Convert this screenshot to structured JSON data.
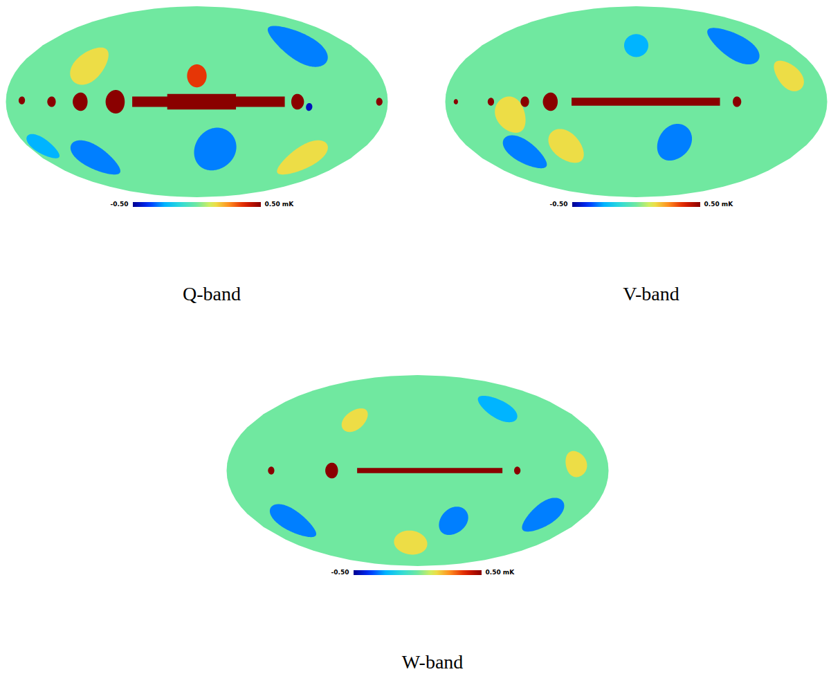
{
  "chart_data": [
    {
      "type": "map",
      "title": "Q-band",
      "background": 0,
      "colorbar": {
        "range": [
          -0.5,
          0.5
        ],
        "ticks": [
          {
            "value": -0.5,
            "label": "-0.50"
          },
          {
            "value": 0.5,
            "label": "0.50 mK"
          }
        ]
      },
      "regions": [
        {
          "shape": "spot",
          "lon": -120,
          "lat": 45,
          "radius": 18,
          "value": -0.3
        },
        {
          "shape": "spot",
          "lon": -20,
          "lat": -38,
          "radius": 18,
          "value": -0.3
        },
        {
          "shape": "spot",
          "lon": 120,
          "lat": -45,
          "radius": 15,
          "value": -0.3
        },
        {
          "shape": "spot",
          "lon": 165,
          "lat": -35,
          "radius": 10,
          "value": -0.25
        },
        {
          "shape": "spot",
          "lon": 110,
          "lat": 28,
          "radius": 15,
          "value": 0.15
        },
        {
          "shape": "spot",
          "lon": -125,
          "lat": -45,
          "radius": 15,
          "value": 0.15
        },
        {
          "shape": "spot",
          "lon": 0,
          "lat": 20,
          "radius": 9,
          "value": 0.35
        },
        {
          "shape": "band",
          "lon": [
            -83,
            61
          ],
          "lat": [
            -4,
            4
          ],
          "value": 0.5
        },
        {
          "shape": "band",
          "lon": [
            -37,
            28
          ],
          "lat": [
            -6,
            6
          ],
          "value": 0.5
        },
        {
          "shape": "spot",
          "lon": 77,
          "lat": 0,
          "radius": 9,
          "value": 0.5
        },
        {
          "shape": "spot",
          "lon": 110,
          "lat": 0,
          "radius": 7,
          "value": 0.5
        },
        {
          "shape": "spot",
          "lon": 137,
          "lat": 0,
          "radius": 4,
          "value": 0.5
        },
        {
          "shape": "spot",
          "lon": 165,
          "lat": 1,
          "radius": 3,
          "value": 0.5
        },
        {
          "shape": "spot",
          "lon": -172,
          "lat": 0,
          "radius": 3,
          "value": 0.5
        },
        {
          "shape": "spot",
          "lon": -95,
          "lat": 0,
          "radius": 6,
          "value": 0.5
        },
        {
          "shape": "spot",
          "lon": -106,
          "lat": -4,
          "radius": 3,
          "value": -0.45
        }
      ]
    },
    {
      "type": "map",
      "title": "V-band",
      "background": 0,
      "colorbar": {
        "range": [
          -0.5,
          0.5
        ],
        "ticks": [
          {
            "value": -0.5,
            "label": "-0.50"
          },
          {
            "value": 0.5,
            "label": "0.50 mK"
          }
        ]
      },
      "regions": [
        {
          "shape": "spot",
          "lon": -115,
          "lat": 45,
          "radius": 16,
          "value": -0.3
        },
        {
          "shape": "spot",
          "lon": -40,
          "lat": -32,
          "radius": 15,
          "value": -0.3
        },
        {
          "shape": "spot",
          "lon": 125,
          "lat": -40,
          "radius": 14,
          "value": -0.3
        },
        {
          "shape": "spot",
          "lon": 0,
          "lat": 45,
          "radius": 10,
          "value": -0.25
        },
        {
          "shape": "spot",
          "lon": 120,
          "lat": -10,
          "radius": 14,
          "value": 0.15
        },
        {
          "shape": "spot",
          "lon": 75,
          "lat": -35,
          "radius": 14,
          "value": 0.15
        },
        {
          "shape": "spot",
          "lon": -150,
          "lat": 20,
          "radius": 12,
          "value": 0.15
        },
        {
          "shape": "band",
          "lon": [
            -79,
            61
          ],
          "lat": [
            -3,
            3
          ],
          "value": 0.5
        },
        {
          "shape": "spot",
          "lon": 81,
          "lat": 0,
          "radius": 7,
          "value": 0.5
        },
        {
          "shape": "spot",
          "lon": 105,
          "lat": 0,
          "radius": 4,
          "value": 0.5
        },
        {
          "shape": "spot",
          "lon": 137,
          "lat": 0,
          "radius": 3,
          "value": 0.5
        },
        {
          "shape": "spot",
          "lon": -95,
          "lat": 0,
          "radius": 4,
          "value": 0.5
        },
        {
          "shape": "spot",
          "lon": 170,
          "lat": 0,
          "radius": 2,
          "value": 0.5
        }
      ]
    },
    {
      "type": "map",
      "title": "W-band",
      "background": 0,
      "colorbar": {
        "range": [
          -0.5,
          0.5
        ],
        "ticks": [
          {
            "value": -0.5,
            "label": "-0.50"
          },
          {
            "value": 0.5,
            "label": "0.50 mK"
          }
        ]
      },
      "regions": [
        {
          "shape": "spot",
          "lon": 140,
          "lat": -40,
          "radius": 14,
          "value": -0.3
        },
        {
          "shape": "spot",
          "lon": -135,
          "lat": -35,
          "radius": 14,
          "value": -0.3
        },
        {
          "shape": "spot",
          "lon": -40,
          "lat": -40,
          "radius": 12,
          "value": -0.3
        },
        {
          "shape": "spot",
          "lon": -100,
          "lat": 50,
          "radius": 12,
          "value": -0.25
        },
        {
          "shape": "spot",
          "lon": -150,
          "lat": 5,
          "radius": 10,
          "value": 0.15
        },
        {
          "shape": "spot",
          "lon": 10,
          "lat": -60,
          "radius": 12,
          "value": 0.15
        },
        {
          "shape": "spot",
          "lon": 70,
          "lat": 40,
          "radius": 10,
          "value": 0.15
        },
        {
          "shape": "band",
          "lon": [
            -80,
            57
          ],
          "lat": [
            -2,
            2
          ],
          "value": 0.5
        },
        {
          "shape": "spot",
          "lon": 81,
          "lat": 0,
          "radius": 6,
          "value": 0.5
        },
        {
          "shape": "spot",
          "lon": -94,
          "lat": 0,
          "radius": 3,
          "value": 0.5
        },
        {
          "shape": "spot",
          "lon": 138,
          "lat": 0,
          "radius": 3,
          "value": 0.5
        }
      ]
    }
  ]
}
